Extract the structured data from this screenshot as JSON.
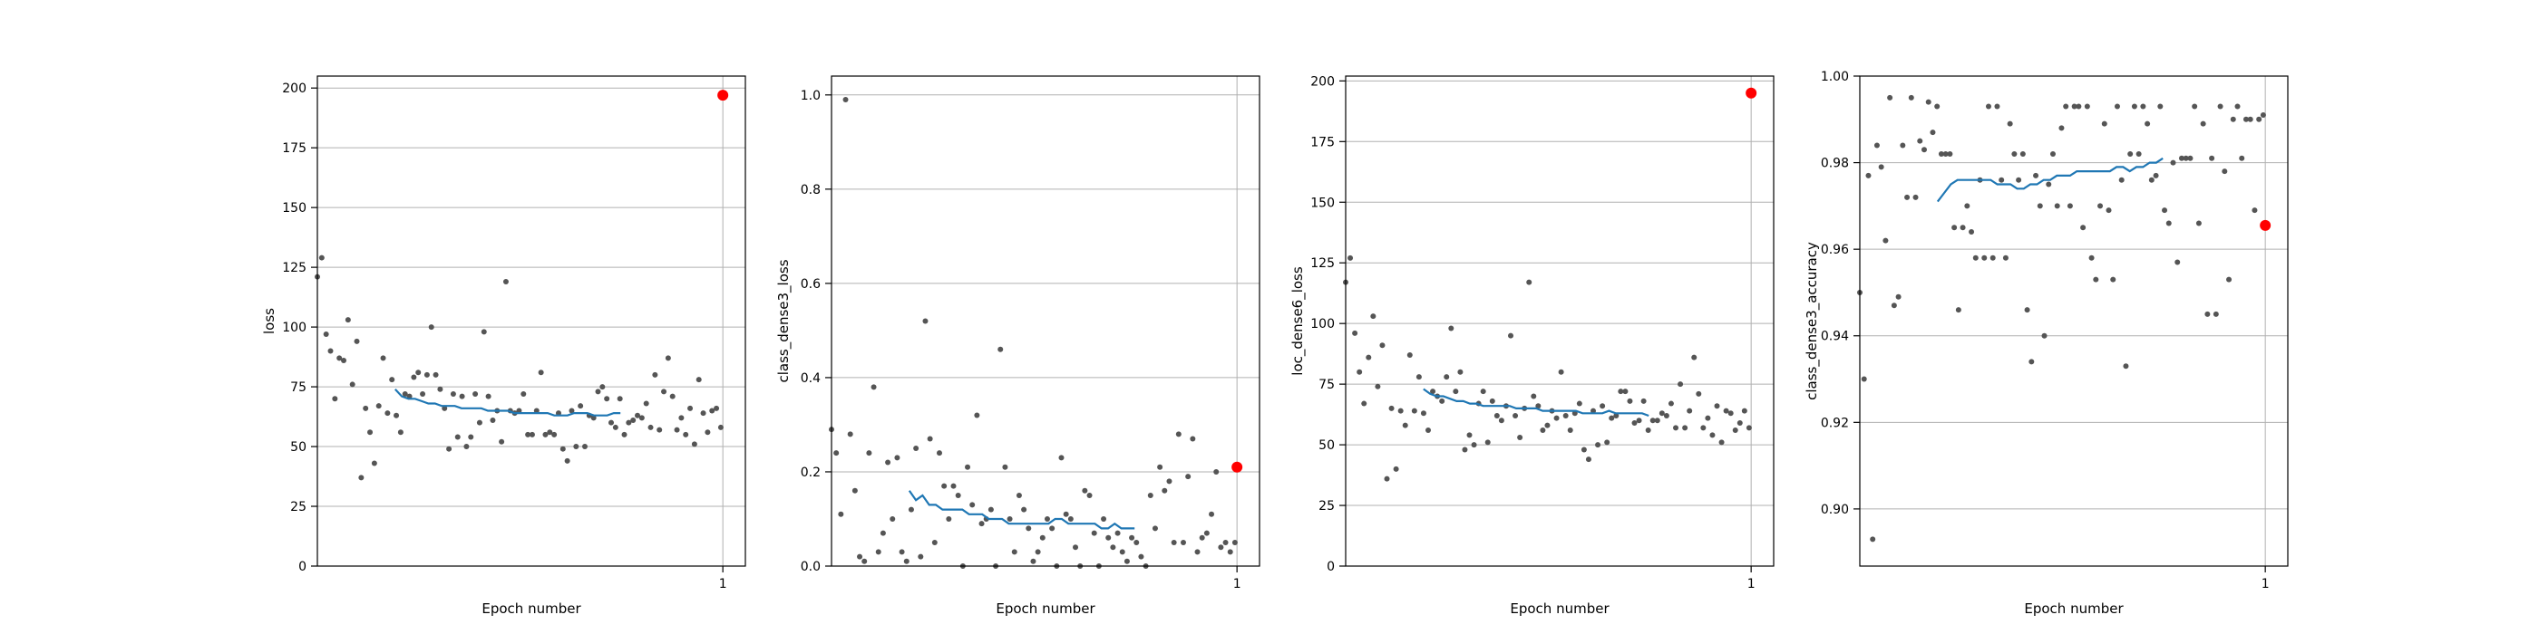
{
  "chart_data": [
    {
      "type": "scatter",
      "xlabel": "Epoch number",
      "ylabel": "loss",
      "ylim": [
        0,
        205
      ],
      "yticks": [
        0,
        25,
        50,
        75,
        100,
        125,
        150,
        175,
        200
      ],
      "ytick_labels": [
        "0",
        "25",
        "50",
        "75",
        "100",
        "125",
        "150",
        "175",
        "200"
      ],
      "xlim": [
        0.01,
        1.055
      ],
      "xticks": [
        1
      ],
      "xtick_labels": [
        "1"
      ],
      "grid": true,
      "series": [
        {
          "kind": "points",
          "color": "#555555",
          "y": [
            121,
            129,
            97,
            90,
            70,
            87,
            86,
            103,
            76,
            94,
            37,
            66,
            56,
            43,
            67,
            87,
            64,
            78,
            63,
            56,
            72,
            71,
            79,
            81,
            72,
            80,
            100,
            80,
            74,
            66,
            49,
            72,
            54,
            71,
            50,
            54,
            72,
            60,
            98,
            71,
            61,
            65,
            52,
            119,
            65,
            64,
            65,
            72,
            55,
            55,
            65,
            81,
            55,
            56,
            55,
            64,
            49,
            44,
            65,
            50,
            67,
            50,
            63,
            62,
            73,
            75,
            70,
            60,
            58,
            70,
            55,
            60,
            61,
            63,
            62,
            68,
            58,
            80,
            57,
            73,
            87,
            71,
            57,
            62,
            55,
            66,
            51,
            78,
            64,
            56,
            65,
            66,
            58
          ]
        },
        {
          "kind": "moving-average",
          "color": "#1f77b4",
          "y": [
            74,
            71,
            70,
            70,
            69,
            68,
            68,
            67,
            67,
            67,
            66,
            66,
            66,
            66,
            65,
            65,
            65,
            65,
            64,
            64,
            64,
            64,
            64,
            64,
            63,
            63,
            63,
            64,
            64,
            64,
            63,
            63,
            63,
            64,
            64
          ]
        },
        {
          "kind": "final",
          "color": "#ff0000",
          "x": 1,
          "y": 197
        }
      ]
    },
    {
      "type": "scatter",
      "xlabel": "Epoch number",
      "ylabel": "class_dense3_loss",
      "ylim": [
        0,
        1.04
      ],
      "yticks": [
        0,
        0.2,
        0.4,
        0.6,
        0.8,
        1.0
      ],
      "ytick_labels": [
        "0.0",
        "0.2",
        "0.4",
        "0.6",
        "0.8",
        "1.0"
      ],
      "xlim": [
        0.01,
        1.055
      ],
      "xticks": [
        1
      ],
      "xtick_labels": [
        "1"
      ],
      "grid": true,
      "series": [
        {
          "kind": "points",
          "color": "#555555",
          "y": [
            0.29,
            0.24,
            0.11,
            0.99,
            0.28,
            0.16,
            0.02,
            0.01,
            0.24,
            0.38,
            0.03,
            0.07,
            0.22,
            0.1,
            0.23,
            0.03,
            0.01,
            0.12,
            0.25,
            0.02,
            0.52,
            0.27,
            0.05,
            0.24,
            0.17,
            0.1,
            0.17,
            0.15,
            0.0,
            0.21,
            0.13,
            0.32,
            0.09,
            0.1,
            0.12,
            0.0,
            0.46,
            0.21,
            0.1,
            0.03,
            0.15,
            0.12,
            0.08,
            0.01,
            0.03,
            0.06,
            0.1,
            0.08,
            0.0,
            0.23,
            0.11,
            0.1,
            0.04,
            0.0,
            0.16,
            0.15,
            0.07,
            0.0,
            0.1,
            0.06,
            0.04,
            0.07,
            0.03,
            0.01,
            0.06,
            0.05,
            0.02,
            0.0,
            0.15,
            0.08,
            0.21,
            0.16,
            0.18,
            0.05,
            0.28,
            0.05,
            0.19,
            0.27,
            0.03,
            0.06,
            0.07,
            0.11,
            0.2,
            0.04,
            0.05,
            0.03,
            0.05
          ]
        },
        {
          "kind": "moving-average",
          "color": "#1f77b4",
          "y": [
            0.16,
            0.14,
            0.15,
            0.13,
            0.13,
            0.12,
            0.12,
            0.12,
            0.12,
            0.11,
            0.11,
            0.11,
            0.1,
            0.1,
            0.1,
            0.09,
            0.09,
            0.09,
            0.09,
            0.09,
            0.09,
            0.09,
            0.1,
            0.1,
            0.09,
            0.09,
            0.09,
            0.09,
            0.09,
            0.08,
            0.08,
            0.09,
            0.08,
            0.08,
            0.08
          ]
        },
        {
          "kind": "final",
          "color": "#ff0000",
          "x": 1,
          "y": 0.21
        }
      ]
    },
    {
      "type": "scatter",
      "xlabel": "Epoch number",
      "ylabel": "loc_dense6_loss",
      "ylim": [
        0,
        202
      ],
      "yticks": [
        0,
        25,
        50,
        75,
        100,
        125,
        150,
        175,
        200
      ],
      "ytick_labels": [
        "0",
        "25",
        "50",
        "75",
        "100",
        "125",
        "150",
        "175",
        "200"
      ],
      "xlim": [
        0.01,
        1.055
      ],
      "xticks": [
        1
      ],
      "xtick_labels": [
        "1"
      ],
      "grid": true,
      "series": [
        {
          "kind": "points",
          "color": "#555555",
          "y": [
            117,
            127,
            96,
            80,
            67,
            86,
            103,
            74,
            91,
            36,
            65,
            40,
            64,
            58,
            87,
            64,
            78,
            63,
            56,
            72,
            70,
            68,
            78,
            98,
            72,
            80,
            48,
            54,
            50,
            67,
            72,
            51,
            68,
            62,
            60,
            66,
            95,
            62,
            53,
            65,
            117,
            70,
            66,
            56,
            58,
            64,
            61,
            80,
            62,
            56,
            63,
            67,
            48,
            44,
            64,
            50,
            66,
            51,
            61,
            62,
            72,
            72,
            68,
            59,
            60,
            68,
            56,
            60,
            60,
            63,
            62,
            67,
            57,
            75,
            57,
            64,
            86,
            71,
            57,
            61,
            54,
            66,
            51,
            64,
            63,
            56,
            59,
            64,
            57
          ]
        },
        {
          "kind": "moving-average",
          "color": "#1f77b4",
          "y": [
            73,
            71,
            70,
            70,
            69,
            68,
            68,
            67,
            67,
            66,
            66,
            66,
            66,
            66,
            65,
            65,
            65,
            65,
            64,
            64,
            64,
            64,
            64,
            64,
            63,
            63,
            63,
            63,
            64,
            63,
            63,
            63,
            63,
            63,
            62
          ]
        },
        {
          "kind": "final",
          "color": "#ff0000",
          "x": 1,
          "y": 195
        }
      ]
    },
    {
      "type": "scatter",
      "xlabel": "Epoch number",
      "ylabel": "class_dense3_accuracy",
      "ylim": [
        0.8868,
        1.0
      ],
      "yticks": [
        0.9,
        0.92,
        0.94,
        0.96,
        0.98,
        1.0
      ],
      "ytick_labels": [
        "0.90",
        "0.92",
        "0.94",
        "0.96",
        "0.98",
        "1.00"
      ],
      "xlim": [
        0.01,
        1.055
      ],
      "xticks": [
        1
      ],
      "xtick_labels": [
        "1"
      ],
      "grid": true,
      "series": [
        {
          "kind": "points",
          "color": "#555555",
          "y": [
            0.95,
            0.93,
            0.977,
            0.893,
            0.984,
            0.979,
            0.962,
            0.995,
            0.947,
            0.949,
            0.984,
            0.972,
            0.995,
            0.972,
            0.985,
            0.983,
            0.994,
            0.987,
            0.993,
            0.982,
            0.982,
            0.982,
            0.965,
            0.946,
            0.965,
            0.97,
            0.964,
            0.958,
            0.976,
            0.958,
            0.993,
            0.958,
            0.993,
            0.976,
            0.958,
            0.989,
            0.982,
            0.976,
            0.982,
            0.946,
            0.934,
            0.977,
            0.97,
            0.94,
            0.975,
            0.982,
            0.97,
            0.988,
            0.993,
            0.97,
            0.993,
            0.993,
            0.965,
            0.993,
            0.958,
            0.953,
            0.97,
            0.989,
            0.969,
            0.953,
            0.993,
            0.976,
            0.933,
            0.982,
            0.993,
            0.982,
            0.993,
            0.989,
            0.976,
            0.977,
            0.993,
            0.969,
            0.966,
            0.98,
            0.957,
            0.981,
            0.981,
            0.981,
            0.993,
            0.966,
            0.989,
            0.945,
            0.981,
            0.945,
            0.993,
            0.978,
            0.953,
            0.99,
            0.993,
            0.981,
            0.99,
            0.99,
            0.969,
            0.99,
            0.991
          ]
        },
        {
          "kind": "moving-average",
          "color": "#1f77b4",
          "y": [
            0.971,
            0.973,
            0.975,
            0.976,
            0.976,
            0.976,
            0.976,
            0.976,
            0.976,
            0.975,
            0.975,
            0.975,
            0.974,
            0.974,
            0.975,
            0.975,
            0.976,
            0.976,
            0.977,
            0.977,
            0.977,
            0.978,
            0.978,
            0.978,
            0.978,
            0.978,
            0.978,
            0.979,
            0.979,
            0.978,
            0.979,
            0.979,
            0.98,
            0.98,
            0.981
          ]
        },
        {
          "kind": "final",
          "color": "#ff0000",
          "x": 1,
          "y": 0.9655
        }
      ]
    }
  ]
}
